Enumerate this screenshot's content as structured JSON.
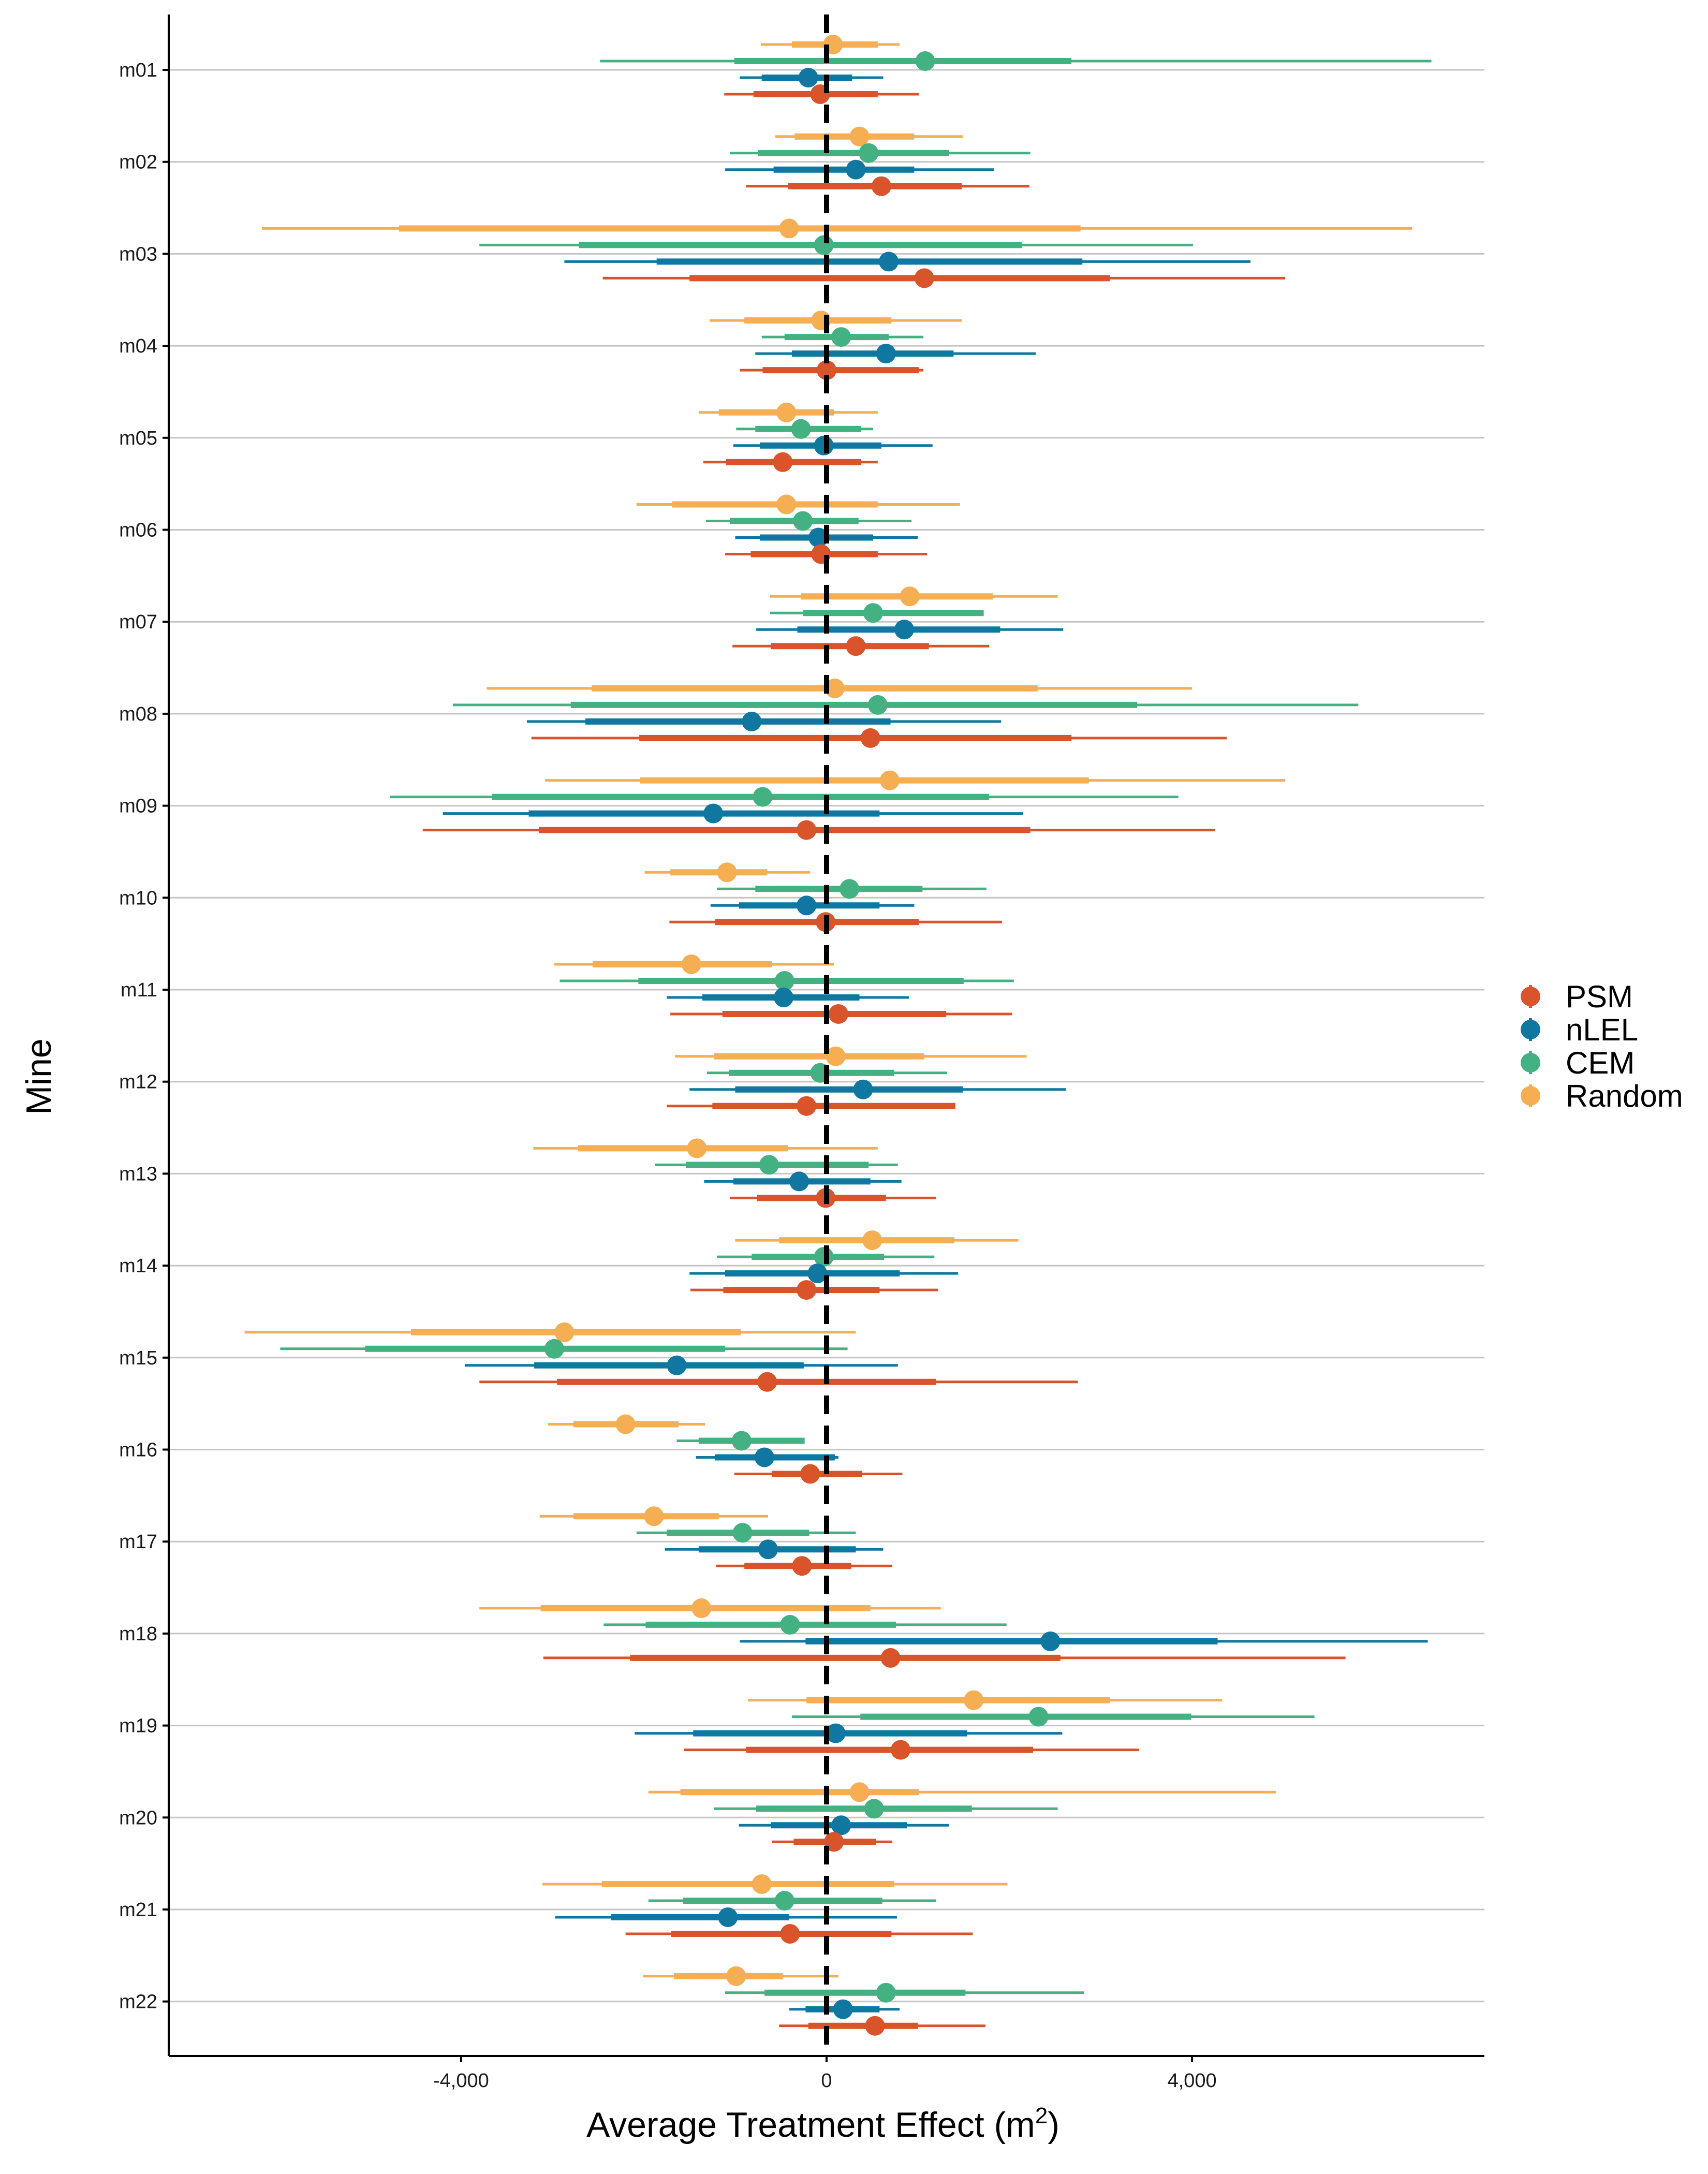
{
  "chart_data": {
    "type": "forest",
    "xlabel": "Average Treatment Effect",
    "xlabel_unit": "m",
    "xlabel_unit_sup": "2",
    "ylabel": "Mine",
    "xlim": [
      -7200,
      7200
    ],
    "xticks": [
      -4000,
      0,
      4000
    ],
    "xtick_labels": [
      "-4,000",
      "0",
      "4,000"
    ],
    "reference_line": 0,
    "grid": "horizontal",
    "legend_position": "right",
    "categories": [
      "m01",
      "m02",
      "m03",
      "m04",
      "m05",
      "m06",
      "m07",
      "m08",
      "m09",
      "m10",
      "m11",
      "m12",
      "m13",
      "m14",
      "m15",
      "m16",
      "m17",
      "m18",
      "m19",
      "m20",
      "m21",
      "m22"
    ],
    "series": [
      {
        "name": "PSM",
        "color": "#D9532B",
        "estimates": [
          -70,
          600,
          1070,
          0,
          -480,
          -60,
          320,
          480,
          -220,
          -10,
          130,
          -220,
          -10,
          -220,
          -650,
          -180,
          -270,
          700,
          810,
          80,
          -400,
          530
        ],
        "ci_inner": [
          [
            -800,
            560
          ],
          [
            -420,
            1480
          ],
          [
            -1500,
            3100
          ],
          [
            -700,
            1010
          ],
          [
            -1100,
            380
          ],
          [
            -830,
            560
          ],
          [
            -610,
            1120
          ],
          [
            -2050,
            2680
          ],
          [
            -3150,
            2230
          ],
          [
            -1220,
            1010
          ],
          [
            -1140,
            1310
          ],
          [
            -1250,
            1410
          ],
          [
            -760,
            650
          ],
          [
            -1130,
            580
          ],
          [
            -2950,
            1200
          ],
          [
            -600,
            390
          ],
          [
            -900,
            270
          ],
          [
            -2150,
            2560
          ],
          [
            -880,
            2260
          ],
          [
            -360,
            540
          ],
          [
            -1700,
            710
          ],
          [
            -200,
            1000
          ]
        ],
        "ci_outer": [
          [
            -1120,
            1010
          ],
          [
            -880,
            2220
          ],
          [
            -2450,
            5020
          ],
          [
            -950,
            1060
          ],
          [
            -1350,
            560
          ],
          [
            -1110,
            1100
          ],
          [
            -1030,
            1780
          ],
          [
            -3230,
            4380
          ],
          [
            -4420,
            4250
          ],
          [
            -1720,
            1920
          ],
          [
            -1710,
            2030
          ],
          [
            -1750,
            1390
          ],
          [
            -1060,
            1200
          ],
          [
            -1490,
            1220
          ],
          [
            -3800,
            2750
          ],
          [
            -1010,
            830
          ],
          [
            -1210,
            720
          ],
          [
            -3100,
            5680
          ],
          [
            -1560,
            3420
          ],
          [
            -600,
            720
          ],
          [
            -2200,
            1600
          ],
          [
            -520,
            1740
          ]
        ]
      },
      {
        "name": "nLEL",
        "color": "#0F77A0",
        "estimates": [
          -200,
          320,
          680,
          650,
          -30,
          -90,
          850,
          -820,
          -1240,
          -220,
          -470,
          400,
          -300,
          -100,
          -1640,
          -680,
          -640,
          2450,
          100,
          160,
          -1080,
          180
        ],
        "ci_inner": [
          [
            -710,
            280
          ],
          [
            -580,
            960
          ],
          [
            -1860,
            2800
          ],
          [
            -380,
            1390
          ],
          [
            -730,
            600
          ],
          [
            -730,
            510
          ],
          [
            -320,
            1900
          ],
          [
            -2640,
            700
          ],
          [
            -3260,
            580
          ],
          [
            -960,
            580
          ],
          [
            -1360,
            360
          ],
          [
            -1000,
            1490
          ],
          [
            -1020,
            480
          ],
          [
            -1110,
            800
          ],
          [
            -3200,
            -250
          ],
          [
            -1220,
            90
          ],
          [
            -1400,
            320
          ],
          [
            -230,
            4280
          ],
          [
            -1460,
            1540
          ],
          [
            -610,
            880
          ],
          [
            -2360,
            -410
          ],
          [
            -230,
            580
          ]
        ],
        "ci_outer": [
          [
            -950,
            620
          ],
          [
            -1110,
            1830
          ],
          [
            -2870,
            4640
          ],
          [
            -780,
            2290
          ],
          [
            -1020,
            1160
          ],
          [
            -1000,
            1000
          ],
          [
            -770,
            2590
          ],
          [
            -3280,
            1910
          ],
          [
            -4200,
            2150
          ],
          [
            -1270,
            960
          ],
          [
            -1750,
            900
          ],
          [
            -1500,
            2620
          ],
          [
            -1340,
            820
          ],
          [
            -1500,
            1440
          ],
          [
            -3960,
            780
          ],
          [
            -1430,
            130
          ],
          [
            -1770,
            620
          ],
          [
            -950,
            6580
          ],
          [
            -2100,
            2580
          ],
          [
            -960,
            1340
          ],
          [
            -2970,
            770
          ],
          [
            -410,
            800
          ]
        ]
      },
      {
        "name": "CEM",
        "color": "#44B183",
        "estimates": [
          1080,
          460,
          -30,
          160,
          -280,
          -260,
          510,
          560,
          -700,
          250,
          -460,
          -70,
          -630,
          -30,
          -2980,
          -930,
          -920,
          -400,
          2320,
          520,
          -460,
          650
        ],
        "ci_inner": [
          [
            -1010,
            2680
          ],
          [
            -750,
            1340
          ],
          [
            -2710,
            2140
          ],
          [
            -460,
            680
          ],
          [
            -780,
            380
          ],
          [
            -1060,
            350
          ],
          [
            -260,
            1720
          ],
          [
            -2800,
            3400
          ],
          [
            -3660,
            1780
          ],
          [
            -780,
            1050
          ],
          [
            -2060,
            1500
          ],
          [
            -1070,
            740
          ],
          [
            -1540,
            460
          ],
          [
            -820,
            630
          ],
          [
            -5050,
            -1110
          ],
          [
            -1400,
            -240
          ],
          [
            -1750,
            -190
          ],
          [
            -1980,
            760
          ],
          [
            370,
            3990
          ],
          [
            -770,
            1590
          ],
          [
            -1570,
            610
          ],
          [
            -680,
            1520
          ]
        ],
        "ci_outer": [
          [
            -2480,
            6620
          ],
          [
            -1060,
            2230
          ],
          [
            -3800,
            4010
          ],
          [
            -710,
            1060
          ],
          [
            -990,
            510
          ],
          [
            -1320,
            930
          ],
          [
            -620,
            1670
          ],
          [
            -4090,
            5820
          ],
          [
            -4780,
            3850
          ],
          [
            -1200,
            1750
          ],
          [
            -2920,
            2050
          ],
          [
            -1310,
            1320
          ],
          [
            -1880,
            780
          ],
          [
            -1200,
            1180
          ],
          [
            -5980,
            230
          ],
          [
            -1640,
            -260
          ],
          [
            -2080,
            320
          ],
          [
            -2440,
            1970
          ],
          [
            -380,
            5340
          ],
          [
            -1230,
            2530
          ],
          [
            -1950,
            1200
          ],
          [
            -1110,
            2820
          ]
        ]
      },
      {
        "name": "Random",
        "color": "#F5AE52",
        "estimates": [
          70,
          360,
          -410,
          -60,
          -440,
          -440,
          910,
          90,
          690,
          -1090,
          -1480,
          100,
          -1420,
          500,
          -2870,
          -2200,
          -1890,
          -1370,
          1610,
          360,
          -710,
          -990
        ],
        "ci_inner": [
          [
            -380,
            560
          ],
          [
            -350,
            960
          ],
          [
            -4680,
            2780
          ],
          [
            -900,
            710
          ],
          [
            -1180,
            80
          ],
          [
            -1690,
            560
          ],
          [
            -280,
            1820
          ],
          [
            -2570,
            2310
          ],
          [
            -2040,
            2870
          ],
          [
            -1710,
            -650
          ],
          [
            -2560,
            -600
          ],
          [
            -1230,
            1070
          ],
          [
            -2720,
            -420
          ],
          [
            -520,
            1400
          ],
          [
            -4550,
            -940
          ],
          [
            -2770,
            -1620
          ],
          [
            -2770,
            -1180
          ],
          [
            -3130,
            480
          ],
          [
            -220,
            3100
          ],
          [
            -1600,
            1010
          ],
          [
            -2460,
            740
          ],
          [
            -1670,
            -480
          ]
        ],
        "ci_outer": [
          [
            -720,
            800
          ],
          [
            -560,
            1490
          ],
          [
            -6180,
            6410
          ],
          [
            -1280,
            1480
          ],
          [
            -1400,
            560
          ],
          [
            -2080,
            1460
          ],
          [
            -620,
            2530
          ],
          [
            -3720,
            4000
          ],
          [
            -3080,
            5020
          ],
          [
            -1990,
            -180
          ],
          [
            -2980,
            80
          ],
          [
            -1660,
            2190
          ],
          [
            -3210,
            560
          ],
          [
            -1000,
            2100
          ],
          [
            -6370,
            320
          ],
          [
            -3050,
            -1330
          ],
          [
            -3140,
            -640
          ],
          [
            -3800,
            1250
          ],
          [
            -860,
            4330
          ],
          [
            -1950,
            4920
          ],
          [
            -3110,
            1980
          ],
          [
            -2010,
            130
          ]
        ]
      }
    ]
  }
}
